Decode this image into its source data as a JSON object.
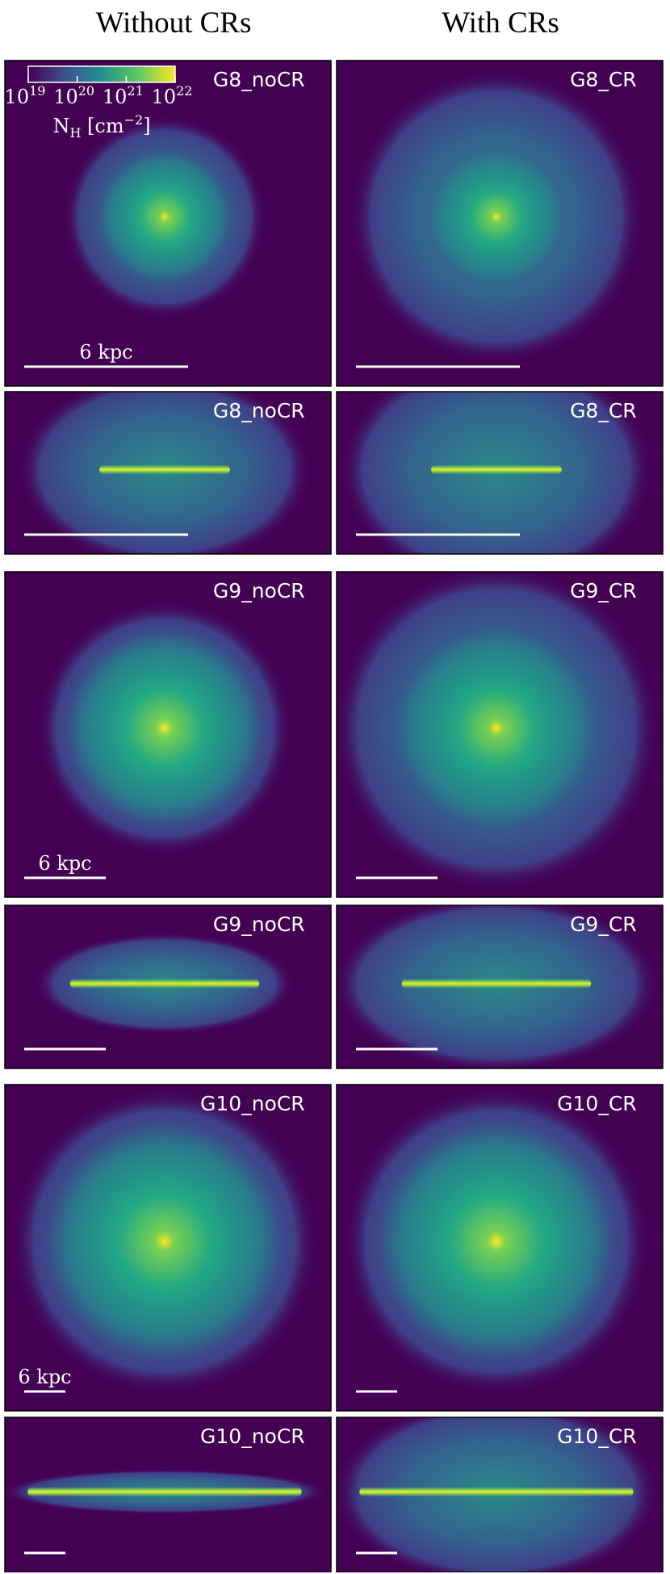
{
  "columns": [
    "Without CRs",
    "With CRs"
  ],
  "colorbar": {
    "ticks": [
      {
        "base": "10",
        "exp": "19"
      },
      {
        "base": "10",
        "exp": "20"
      },
      {
        "base": "10",
        "exp": "21"
      },
      {
        "base": "10",
        "exp": "22"
      }
    ],
    "label": {
      "symbol": "N",
      "subscript": "H",
      "unit": " [cm",
      "unit_exponent": "−2",
      "close": "]"
    }
  },
  "rows": [
    {
      "panels": [
        {
          "label": "G8_noCR",
          "scale_label": "6 kpc"
        },
        {
          "label": "G8_CR"
        }
      ]
    },
    {
      "panels": [
        {
          "label": "G8_noCR"
        },
        {
          "label": "G8_CR"
        }
      ]
    },
    {
      "panels": [
        {
          "label": "G9_noCR",
          "scale_label": "6 kpc"
        },
        {
          "label": "G9_CR"
        }
      ]
    },
    {
      "panels": [
        {
          "label": "G9_noCR"
        },
        {
          "label": "G9_CR"
        }
      ]
    },
    {
      "panels": [
        {
          "label": "G10_noCR",
          "scale_label": "6 kpc"
        },
        {
          "label": "G10_CR"
        }
      ]
    },
    {
      "panels": [
        {
          "label": "G10_noCR"
        },
        {
          "label": "G10_CR"
        }
      ]
    }
  ]
}
